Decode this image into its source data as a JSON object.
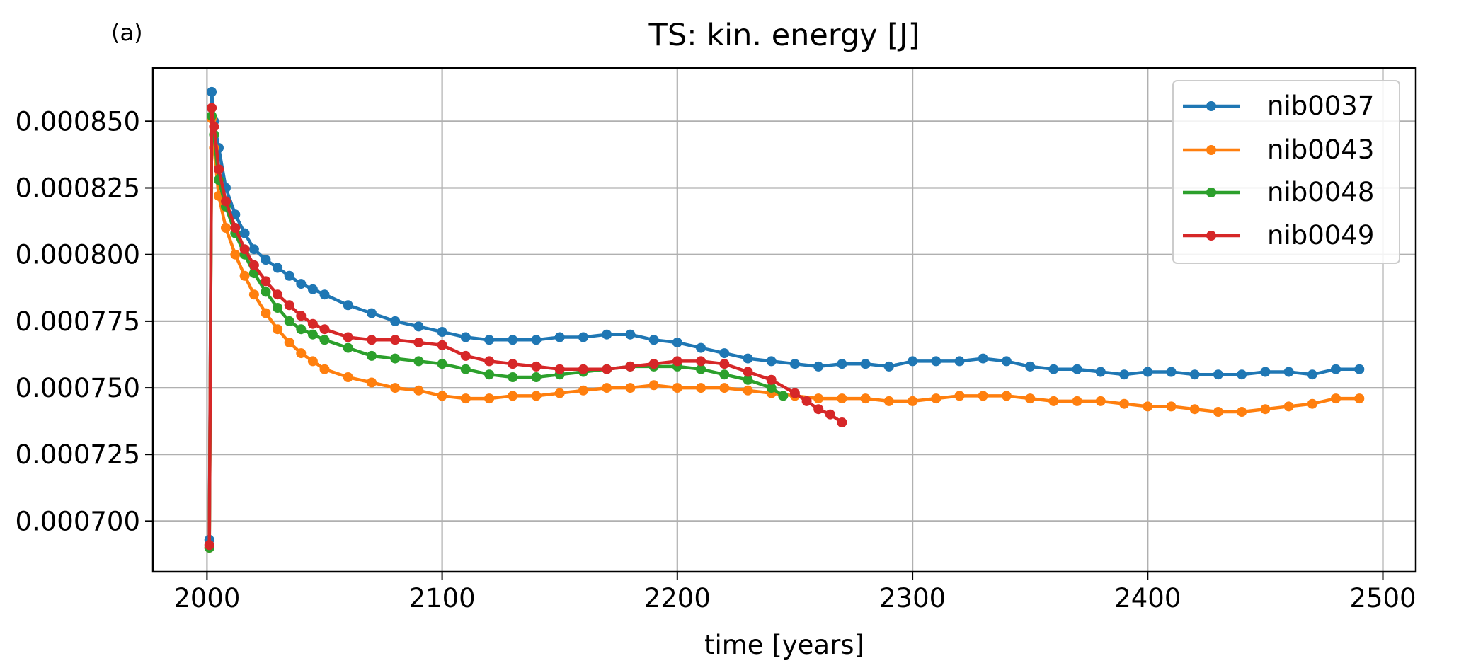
{
  "chart_data": {
    "type": "line",
    "panel_label": "(a)",
    "title": "TS: kin. energy [J]",
    "xlabel": "time [years]",
    "ylabel": "",
    "xlim": [
      1977,
      2514
    ],
    "ylim": [
      0.000681,
      0.00087
    ],
    "x_ticks": [
      2000,
      2100,
      2200,
      2300,
      2400,
      2500
    ],
    "x_tick_labels": [
      "2000",
      "2100",
      "2200",
      "2300",
      "2400",
      "2500"
    ],
    "y_ticks": [
      0.0007,
      0.000725,
      0.00075,
      0.000775,
      0.0008,
      0.000825,
      0.00085
    ],
    "y_tick_labels": [
      "0.000700",
      "0.000725",
      "0.000750",
      "0.000775",
      "0.000800",
      "0.000825",
      "0.000850"
    ],
    "grid": true,
    "legend_position": "upper-right",
    "markers": "circle",
    "series": [
      {
        "name": "nib0037",
        "color": "#1f77b4",
        "x": [
          2001,
          2002,
          2003,
          2005,
          2008,
          2012,
          2016,
          2020,
          2025,
          2030,
          2035,
          2040,
          2045,
          2050,
          2060,
          2070,
          2080,
          2090,
          2100,
          2110,
          2120,
          2130,
          2140,
          2150,
          2160,
          2170,
          2180,
          2190,
          2200,
          2210,
          2220,
          2230,
          2240,
          2250,
          2260,
          2270,
          2280,
          2290,
          2300,
          2310,
          2320,
          2330,
          2340,
          2350,
          2360,
          2370,
          2380,
          2390,
          2400,
          2410,
          2420,
          2430,
          2440,
          2450,
          2460,
          2470,
          2480,
          2490
        ],
        "y": [
          0.000693,
          0.000861,
          0.00085,
          0.00084,
          0.000825,
          0.000815,
          0.000808,
          0.000802,
          0.000798,
          0.000795,
          0.000792,
          0.000789,
          0.000787,
          0.000785,
          0.000781,
          0.000778,
          0.000775,
          0.000773,
          0.000771,
          0.000769,
          0.000768,
          0.000768,
          0.000768,
          0.000769,
          0.000769,
          0.00077,
          0.00077,
          0.000768,
          0.000767,
          0.000765,
          0.000763,
          0.000761,
          0.00076,
          0.000759,
          0.000758,
          0.000759,
          0.000759,
          0.000758,
          0.00076,
          0.00076,
          0.00076,
          0.000761,
          0.00076,
          0.000758,
          0.000757,
          0.000757,
          0.000756,
          0.000755,
          0.000756,
          0.000756,
          0.000755,
          0.000755,
          0.000755,
          0.000756,
          0.000756,
          0.000755,
          0.000757,
          0.000757
        ]
      },
      {
        "name": "nib0043",
        "color": "#ff7f0e",
        "x": [
          2001,
          2002,
          2003,
          2005,
          2008,
          2012,
          2016,
          2020,
          2025,
          2030,
          2035,
          2040,
          2045,
          2050,
          2060,
          2070,
          2080,
          2090,
          2100,
          2110,
          2120,
          2130,
          2140,
          2150,
          2160,
          2170,
          2180,
          2190,
          2200,
          2210,
          2220,
          2230,
          2240,
          2250,
          2260,
          2270,
          2280,
          2290,
          2300,
          2310,
          2320,
          2330,
          2340,
          2350,
          2360,
          2370,
          2380,
          2390,
          2400,
          2410,
          2420,
          2430,
          2440,
          2450,
          2460,
          2470,
          2480,
          2490
        ],
        "y": [
          0.00069,
          0.000851,
          0.00084,
          0.000822,
          0.00081,
          0.0008,
          0.000792,
          0.000785,
          0.000778,
          0.000772,
          0.000767,
          0.000763,
          0.00076,
          0.000757,
          0.000754,
          0.000752,
          0.00075,
          0.000749,
          0.000747,
          0.000746,
          0.000746,
          0.000747,
          0.000747,
          0.000748,
          0.000749,
          0.00075,
          0.00075,
          0.000751,
          0.00075,
          0.00075,
          0.00075,
          0.000749,
          0.000748,
          0.000747,
          0.000746,
          0.000746,
          0.000746,
          0.000745,
          0.000745,
          0.000746,
          0.000747,
          0.000747,
          0.000747,
          0.000746,
          0.000745,
          0.000745,
          0.000745,
          0.000744,
          0.000743,
          0.000743,
          0.000742,
          0.000741,
          0.000741,
          0.000742,
          0.000743,
          0.000744,
          0.000746,
          0.000746
        ]
      },
      {
        "name": "nib0048",
        "color": "#2ca02c",
        "x": [
          2001,
          2002,
          2003,
          2005,
          2008,
          2012,
          2016,
          2020,
          2025,
          2030,
          2035,
          2040,
          2045,
          2050,
          2060,
          2070,
          2080,
          2090,
          2100,
          2110,
          2120,
          2130,
          2140,
          2150,
          2160,
          2170,
          2180,
          2190,
          2200,
          2210,
          2220,
          2230,
          2240,
          2245
        ],
        "y": [
          0.00069,
          0.000852,
          0.000845,
          0.000828,
          0.000818,
          0.000808,
          0.0008,
          0.000793,
          0.000786,
          0.00078,
          0.000775,
          0.000772,
          0.00077,
          0.000768,
          0.000765,
          0.000762,
          0.000761,
          0.00076,
          0.000759,
          0.000757,
          0.000755,
          0.000754,
          0.000754,
          0.000755,
          0.000756,
          0.000757,
          0.000758,
          0.000758,
          0.000758,
          0.000757,
          0.000755,
          0.000753,
          0.00075,
          0.000747
        ]
      },
      {
        "name": "nib0049",
        "color": "#d62728",
        "x": [
          2001,
          2002,
          2003,
          2005,
          2008,
          2012,
          2016,
          2020,
          2025,
          2030,
          2035,
          2040,
          2045,
          2050,
          2060,
          2070,
          2080,
          2090,
          2100,
          2110,
          2120,
          2130,
          2140,
          2150,
          2160,
          2170,
          2180,
          2190,
          2200,
          2210,
          2220,
          2230,
          2240,
          2250,
          2255,
          2260,
          2265,
          2270
        ],
        "y": [
          0.000691,
          0.000855,
          0.000848,
          0.000832,
          0.00082,
          0.00081,
          0.000802,
          0.000796,
          0.00079,
          0.000785,
          0.000781,
          0.000777,
          0.000774,
          0.000772,
          0.000769,
          0.000768,
          0.000768,
          0.000767,
          0.000766,
          0.000762,
          0.00076,
          0.000759,
          0.000758,
          0.000757,
          0.000757,
          0.000757,
          0.000758,
          0.000759,
          0.00076,
          0.00076,
          0.000759,
          0.000756,
          0.000753,
          0.000748,
          0.000745,
          0.000742,
          0.00074,
          0.000737
        ]
      }
    ]
  }
}
